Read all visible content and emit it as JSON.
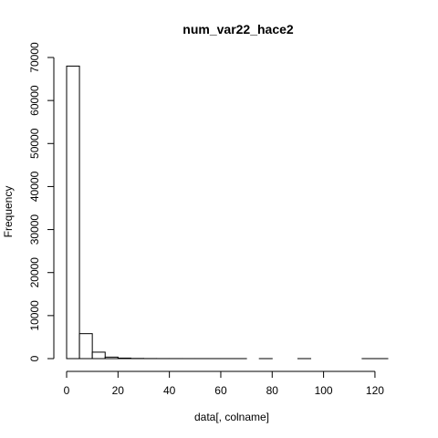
{
  "chart_data": {
    "type": "bar",
    "title": "num_var22_hace2",
    "xlabel": "data[, colname]",
    "ylabel": "Frequency",
    "bin_width": 5,
    "bins": [
      {
        "x0": 0,
        "x1": 5,
        "count": 68000
      },
      {
        "x0": 5,
        "x1": 10,
        "count": 5800
      },
      {
        "x0": 10,
        "x1": 15,
        "count": 1500
      },
      {
        "x0": 15,
        "x1": 20,
        "count": 350
      },
      {
        "x0": 20,
        "x1": 25,
        "count": 120
      },
      {
        "x0": 25,
        "x1": 30,
        "count": 40
      },
      {
        "x0": 30,
        "x1": 35,
        "count": 15
      },
      {
        "x0": 35,
        "x1": 40,
        "count": 8
      },
      {
        "x0": 40,
        "x1": 45,
        "count": 4
      },
      {
        "x0": 45,
        "x1": 50,
        "count": 3
      },
      {
        "x0": 50,
        "x1": 55,
        "count": 2
      },
      {
        "x0": 55,
        "x1": 60,
        "count": 1
      },
      {
        "x0": 60,
        "x1": 65,
        "count": 1
      },
      {
        "x0": 65,
        "x1": 70,
        "count": 1
      },
      {
        "x0": 70,
        "x1": 75,
        "count": 0
      },
      {
        "x0": 75,
        "x1": 80,
        "count": 1
      },
      {
        "x0": 80,
        "x1": 85,
        "count": 0
      },
      {
        "x0": 85,
        "x1": 90,
        "count": 0
      },
      {
        "x0": 90,
        "x1": 95,
        "count": 1
      },
      {
        "x0": 95,
        "x1": 100,
        "count": 0
      },
      {
        "x0": 100,
        "x1": 105,
        "count": 0
      },
      {
        "x0": 105,
        "x1": 110,
        "count": 0
      },
      {
        "x0": 110,
        "x1": 115,
        "count": 0
      },
      {
        "x0": 115,
        "x1": 120,
        "count": 1
      },
      {
        "x0": 120,
        "x1": 125,
        "count": 1
      }
    ],
    "xlim": [
      0,
      125
    ],
    "ylim": [
      0,
      70000
    ],
    "x_ticks": [
      0,
      20,
      40,
      60,
      80,
      100,
      120
    ],
    "x_tick_labels": [
      "0",
      "20",
      "40",
      "60",
      "80",
      "100",
      "120"
    ],
    "y_ticks": [
      0,
      10000,
      20000,
      30000,
      40000,
      50000,
      60000,
      70000
    ],
    "y_tick_labels": [
      "0",
      "10000",
      "20000",
      "30000",
      "40000",
      "50000",
      "60000",
      "70000"
    ],
    "grid": false,
    "colors": {
      "bar_fill": "#ffffff",
      "bar_stroke": "#000000"
    }
  }
}
